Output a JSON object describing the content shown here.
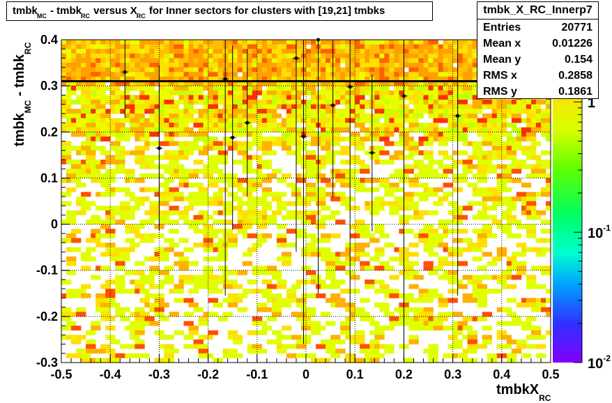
{
  "title_parts": {
    "a": "tmbk",
    "a_sub": "MC",
    "b": " - tmbk",
    "b_sub": "RC",
    "c": " versus X",
    "c_sub": "RC",
    "d": " for Inner sectors for clusters with [19,21] tmbks"
  },
  "stats": {
    "name": "tmbk_X_RC_Innerp7",
    "rows": [
      {
        "label": "Entries",
        "value": "20771"
      },
      {
        "label": "Mean x",
        "value": "0.01226"
      },
      {
        "label": "Mean y",
        "value": "0.154"
      },
      {
        "label": "RMS x",
        "value": "0.2858"
      },
      {
        "label": "RMS y",
        "value": "0.1861"
      }
    ]
  },
  "chart_data": {
    "type": "heatmap",
    "title": "tmbk_MC - tmbk_RC versus X_RC for Inner sectors for clusters with [19,21] tmbks",
    "xlabel": "tmbkX",
    "xlabel_sub": "RC",
    "ylabel": "tmbk",
    "ylabel_sub1": "MC",
    "ylabel_mid": " - tmbk",
    "ylabel_sub2": "RC",
    "xlim": [
      -0.5,
      0.5
    ],
    "ylim": [
      -0.3,
      0.4
    ],
    "x_ticks": [
      -0.5,
      -0.4,
      -0.3,
      -0.2,
      -0.1,
      0,
      0.1,
      0.2,
      0.3,
      0.4,
      0.5
    ],
    "x_tick_labels": [
      "-0.5",
      "-0.4",
      "-0.3",
      "-0.2",
      "-0.1",
      "0",
      "0.1",
      "0.2",
      "0.3",
      "0.4",
      "0.5"
    ],
    "y_ticks": [
      -0.3,
      -0.2,
      -0.1,
      0,
      0.1,
      0.2,
      0.3,
      0.4
    ],
    "y_tick_labels": [
      "-0.3",
      "-0.2",
      "-0.1",
      "0",
      "0.1",
      "0.2",
      "0.3",
      "0.4"
    ],
    "grid": true,
    "z_scale": "log",
    "z_range": [
      0.01,
      3
    ],
    "z_ticks": [
      {
        "value": 1,
        "label": "1",
        "exp": ""
      },
      {
        "value": 0.1,
        "label": "10",
        "exp": "-1"
      },
      {
        "value": 0.01,
        "label": "10",
        "exp": "-2"
      }
    ],
    "fit_line": {
      "y": 0.31
    },
    "profile_points": [
      {
        "x": -0.37,
        "y": 0.33,
        "ey": 0.1
      },
      {
        "x": -0.3,
        "y": 0.165,
        "ey": 0.18
      },
      {
        "x": -0.165,
        "y": 0.315,
        "ey": 0.47
      },
      {
        "x": -0.15,
        "y": 0.188,
        "ey": 0.2
      },
      {
        "x": -0.12,
        "y": 0.22,
        "ey": 0.16
      },
      {
        "x": -0.02,
        "y": 0.36,
        "ey": 0.42
      },
      {
        "x": -0.005,
        "y": 0.19,
        "ey": 0.45
      },
      {
        "x": 0.025,
        "y": 0.4,
        "ey": 0.55
      },
      {
        "x": 0.055,
        "y": 0.258,
        "ey": 0.2
      },
      {
        "x": 0.09,
        "y": 0.298,
        "ey": 0.6
      },
      {
        "x": 0.135,
        "y": 0.155,
        "ey": 0.17
      },
      {
        "x": 0.2,
        "y": 0.278,
        "ey": 0.6
      },
      {
        "x": 0.31,
        "y": 0.235,
        "ey": 0.39
      }
    ]
  }
}
